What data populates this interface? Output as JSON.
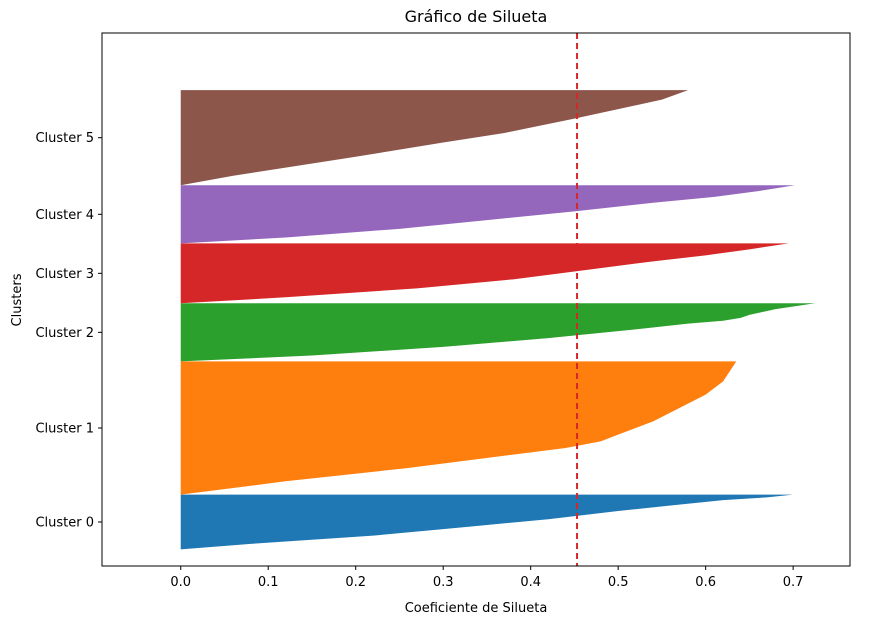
{
  "chart_data": {
    "type": "area",
    "title": "Gráfico de Silueta",
    "xlabel": "Coeficiente de Silueta",
    "ylabel": "Clusters",
    "xlim": [
      -0.09,
      0.765
    ],
    "ylim": [
      -15,
      1105
    ],
    "xticks": [
      0.0,
      0.1,
      0.2,
      0.3,
      0.4,
      0.5,
      0.6,
      0.7
    ],
    "xtick_labels": [
      "0.0",
      "0.1",
      "0.2",
      "0.3",
      "0.4",
      "0.5",
      "0.6",
      "0.7"
    ],
    "grid": false,
    "average_line": {
      "value": 0.453,
      "color": "#d62728",
      "style": "dashed"
    },
    "clusters": [
      {
        "label": "Cluster 0",
        "y_start": 20,
        "y_end": 135,
        "color": "#1f77b4",
        "profile": [
          [
            0,
            0.0
          ],
          [
            0.1,
            0.08
          ],
          [
            0.25,
            0.22
          ],
          [
            0.4,
            0.32
          ],
          [
            0.55,
            0.42
          ],
          [
            0.7,
            0.5
          ],
          [
            0.8,
            0.56
          ],
          [
            0.9,
            0.62
          ],
          [
            0.95,
            0.67
          ],
          [
            1,
            0.7
          ]
        ]
      },
      {
        "label": "Cluster 1",
        "y_start": 135,
        "y_end": 415,
        "color": "#ff7f0e",
        "profile": [
          [
            0,
            0.0
          ],
          [
            0.1,
            0.12
          ],
          [
            0.2,
            0.26
          ],
          [
            0.3,
            0.38
          ],
          [
            0.35,
            0.44
          ],
          [
            0.4,
            0.48
          ],
          [
            0.45,
            0.5
          ],
          [
            0.55,
            0.54
          ],
          [
            0.65,
            0.57
          ],
          [
            0.75,
            0.6
          ],
          [
            0.85,
            0.62
          ],
          [
            1,
            0.635
          ]
        ]
      },
      {
        "label": "Cluster 2",
        "y_start": 415,
        "y_end": 537,
        "color": "#2ca02c",
        "profile": [
          [
            0,
            0.0
          ],
          [
            0.1,
            0.15
          ],
          [
            0.25,
            0.3
          ],
          [
            0.4,
            0.42
          ],
          [
            0.55,
            0.52
          ],
          [
            0.65,
            0.58
          ],
          [
            0.7,
            0.62
          ],
          [
            0.75,
            0.64
          ],
          [
            0.8,
            0.65
          ],
          [
            0.9,
            0.68
          ],
          [
            1,
            0.725
          ]
        ]
      },
      {
        "label": "Cluster 3",
        "y_start": 537,
        "y_end": 663,
        "color": "#d62728",
        "profile": [
          [
            0,
            0.0
          ],
          [
            0.1,
            0.12
          ],
          [
            0.25,
            0.27
          ],
          [
            0.4,
            0.38
          ],
          [
            0.55,
            0.46
          ],
          [
            0.7,
            0.54
          ],
          [
            0.8,
            0.6
          ],
          [
            0.9,
            0.65
          ],
          [
            1,
            0.695
          ]
        ]
      },
      {
        "label": "Cluster 4",
        "y_start": 663,
        "y_end": 785,
        "color": "#9467bd",
        "profile": [
          [
            0,
            0.0
          ],
          [
            0.1,
            0.12
          ],
          [
            0.25,
            0.25
          ],
          [
            0.4,
            0.35
          ],
          [
            0.55,
            0.45
          ],
          [
            0.7,
            0.54
          ],
          [
            0.8,
            0.61
          ],
          [
            0.9,
            0.66
          ],
          [
            1,
            0.702
          ]
        ]
      },
      {
        "label": "Cluster 5",
        "y_start": 785,
        "y_end": 985,
        "color": "#8c564b",
        "profile": [
          [
            0,
            0.0
          ],
          [
            0.1,
            0.06
          ],
          [
            0.2,
            0.13
          ],
          [
            0.3,
            0.2
          ],
          [
            0.45,
            0.3
          ],
          [
            0.55,
            0.37
          ],
          [
            0.7,
            0.45
          ],
          [
            0.8,
            0.5
          ],
          [
            0.9,
            0.55
          ],
          [
            1,
            0.58
          ]
        ]
      }
    ]
  }
}
